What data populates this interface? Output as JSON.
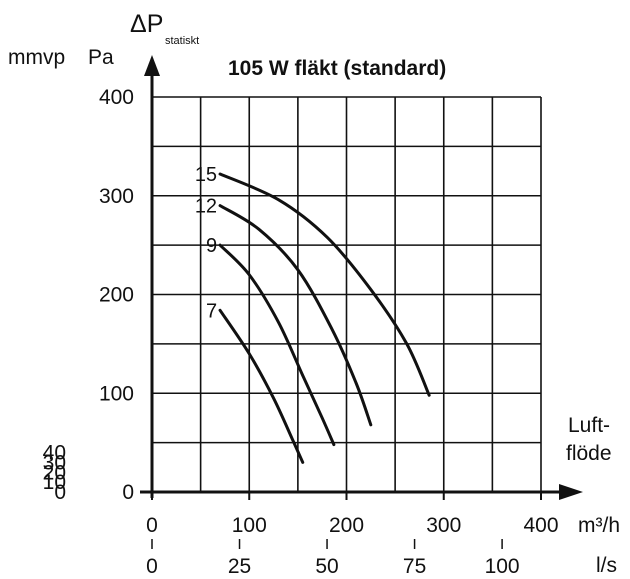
{
  "chart_data": {
    "type": "line",
    "title": "105 W fläkt (standard)",
    "ylabel_symbol": "ΔP",
    "ylabel_subscript": "statiskt",
    "ylabel_units": [
      "mmvp",
      "Pa"
    ],
    "xlabel_lines": [
      "Luft-",
      "flöde"
    ],
    "x_unit_primary": "m³/h",
    "x_unit_secondary": "l/s",
    "xlim": [
      0,
      400
    ],
    "ylim": [
      0,
      400
    ],
    "grid": true,
    "x_ticks_m3h": [
      0,
      100,
      200,
      300,
      400
    ],
    "x_ticks_ls": [
      0,
      25,
      50,
      75,
      100
    ],
    "y_ticks_pa": [
      0,
      100,
      200,
      300,
      400
    ],
    "y_ticks_mmvp": [
      0,
      10,
      20,
      30,
      40
    ],
    "series": [
      {
        "name": "15",
        "points": [
          [
            70,
            322
          ],
          [
            130,
            296
          ],
          [
            180,
            258
          ],
          [
            225,
            205
          ],
          [
            262,
            150
          ],
          [
            285,
            98
          ]
        ]
      },
      {
        "name": "12",
        "points": [
          [
            70,
            290
          ],
          [
            110,
            266
          ],
          [
            150,
            225
          ],
          [
            185,
            165
          ],
          [
            210,
            110
          ],
          [
            225,
            68
          ]
        ]
      },
      {
        "name": "9",
        "points": [
          [
            70,
            250
          ],
          [
            100,
            220
          ],
          [
            130,
            172
          ],
          [
            155,
            118
          ],
          [
            175,
            75
          ],
          [
            187,
            48
          ]
        ]
      },
      {
        "name": "7",
        "points": [
          [
            70,
            184
          ],
          [
            100,
            140
          ],
          [
            125,
            95
          ],
          [
            145,
            52
          ],
          [
            155,
            30
          ]
        ]
      }
    ]
  }
}
